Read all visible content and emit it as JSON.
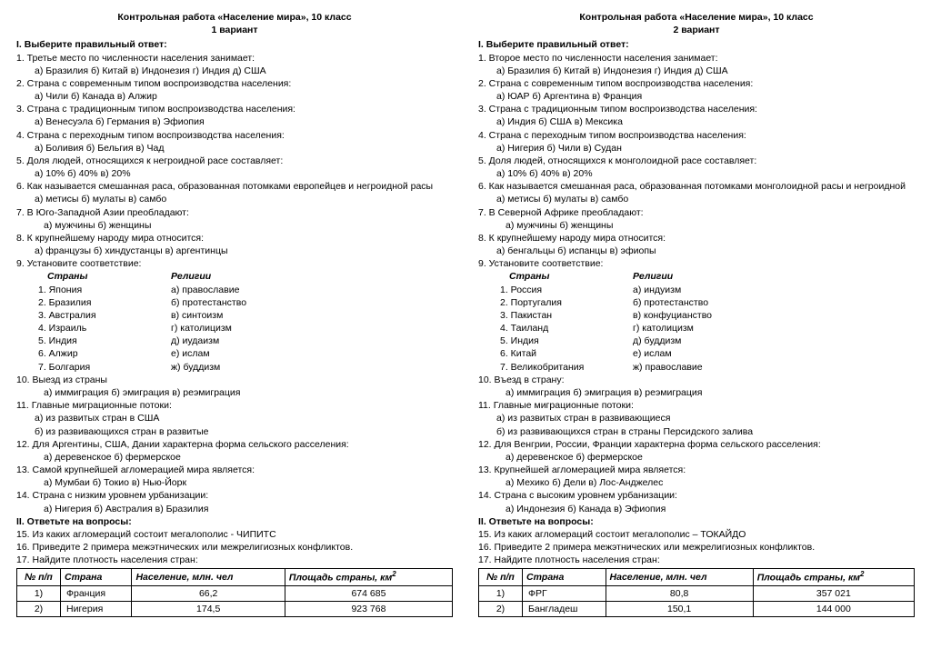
{
  "variants": [
    {
      "title": "Контрольная работа «Население мира», 10 класс",
      "subtitle": "1 вариант",
      "section1": "I. Выберите правильный ответ:",
      "q1": "1. Третье место по численности населения занимает:",
      "q1o": "а) Бразилия    б) Китай   в)   Индонезия   г) Индия    д) США",
      "q2": "2. Страна с современным типом воспроизводства населения:",
      "q2o": "а) Чили         б) Канада        в) Алжир",
      "q3": "3. Страна с традиционным типом воспроизводства населения:",
      "q3o": "а) Венесуэла     б) Германия    в) Эфиопия",
      "q4": "4. Страна с переходным типом воспроизводства населения:",
      "q4o": "а) Боливия    б) Бельгия    в) Чад",
      "q5": "5. Доля людей, относящихся к негроидной расе составляет:",
      "q5o": "а) 10%          б) 40%         в) 20%",
      "q6": "6. Как называется смешанная раса, образованная потомками европейцев и негроидной расы",
      "q6o": "а) метисы        б) мулаты         в) самбо",
      "q7": "7. В Юго-Западной Азии преобладают:",
      "q7o": "а) мужчины         б) женщины",
      "q8": "8. К крупнейшему народу мира относится:",
      "q8o": "а) французы       б) хиндустанцы       в) аргентинцы",
      "q9": "9. Установите соответствие:",
      "match_h1": "Страны",
      "match_h2": "Религии",
      "match": [
        [
          "1. Япония",
          "а) православие"
        ],
        [
          "2. Бразилия",
          "б) протестанство"
        ],
        [
          "3. Австралия",
          "в) синтоизм"
        ],
        [
          "4. Израиль",
          "г) католицизм"
        ],
        [
          "5. Индия",
          "д) иудаизм"
        ],
        [
          "6. Алжир",
          "е) ислам"
        ],
        [
          "7. Болгария",
          "ж) буддизм"
        ]
      ],
      "q10": "10. Выезд из страны",
      "q10o": "а) иммиграция        б) эмиграция         в) реэмиграция",
      "q11": "11. Главные миграционные потоки:",
      "q11a": "а) из развитых стран в США",
      "q11b": "б) из развивающихся стран в развитые",
      "q12": "12. Для Аргентины, США, Дании характерна форма сельского расселения:",
      "q12o": "а) деревенское           б) фермерское",
      "q13": "13. Самой крупнейшей агломерацией мира является:",
      "q13o": "а) Мумбаи       б) Токио      в) Нью-Йорк",
      "q14": "14. Страна с низким уровнем  урбанизации:",
      "q14o": "а) Нигерия       б) Австралия        в) Бразилия",
      "section2": "II. Ответьте на вопросы:",
      "q15": "15.  Из каких агломераций состоит мегалополис - ЧИПИТС",
      "q16": "16.  Приведите 2 примера межэтнических или межрелигиозных конфликтов.",
      "q17": "17. Найдите плотность населения стран:",
      "table": {
        "headers": [
          "№ п/п",
          "Страна",
          "Население, млн. чел",
          "Площадь страны, км"
        ],
        "rows": [
          [
            "1)",
            "Франция",
            "66,2",
            "674 685"
          ],
          [
            "2)",
            "Нигерия",
            "174,5",
            "923 768"
          ]
        ]
      }
    },
    {
      "title": "Контрольная работа «Население мира», 10 класс",
      "subtitle": "2 вариант",
      "section1": "I. Выберите правильный ответ:",
      "q1": "1. Второе место по численности населения занимает:",
      "q1o": "а) Бразилия    б) Китай   в)   Индонезия   г) Индия    д) США",
      "q2": "2. Страна с современным типом воспроизводства населения:",
      "q2o": "а) ЮАР     б) Аргентина     в) Франция",
      "q3": "3. Страна с традиционным типом воспроизводства населения:",
      "q3o": "а) Индия    б) США    в) Мексика",
      "q4": "4. Страна с переходным типом воспроизводства населения:",
      "q4o": "а) Нигерия    б) Чили    в) Судан",
      "q5": "5. Доля людей, относящихся к монголоидной расе составляет:",
      "q5o": "а) 10%          б) 40%         в) 20%",
      "q6": "6. Как называется смешанная раса, образованная потомками монголоидной расы и  негроидной",
      "q6o": "а) метисы          б) мулаты           в) самбо",
      "q7": "7. В Северной Африке преобладают:",
      "q7o": "а) мужчины               б) женщины",
      "q8": "8. К крупнейшему народу мира относится:",
      "q8o": "а) бенгальцы        б) испанцы        в) эфиопы",
      "q9": "9. Установите соответствие:",
      "match_h1": "Страны",
      "match_h2": "Религии",
      "match": [
        [
          "1. Россия",
          "а) индуизм"
        ],
        [
          "2. Португалия",
          "б) протестанство"
        ],
        [
          "3. Пакистан",
          "в) конфуцианство"
        ],
        [
          "4. Таиланд",
          "г) католицизм"
        ],
        [
          "5. Индия",
          "д) буддизм"
        ],
        [
          "6. Китай",
          "е) ислам"
        ],
        [
          "7. Великобритания",
          "ж) православие"
        ]
      ],
      "q10": "10. Въезд в страну:",
      "q10o": "а) иммиграция        б) эмиграция         в) реэмиграция",
      "q11": "11. Главные миграционные потоки:",
      "q11a": "а) из развитых стран в развивающиеся",
      "q11b": "б) из развивающихся стран в страны Персидского залива",
      "q12": "12. Для Венгрии, России, Франции характерна форма сельского расселения:",
      "q12o": "а) деревенское           б) фермерское",
      "q13": "13. Крупнейшей агломерацией мира является:",
      "q13o": "а) Мехико       б) Дели        в) Лос-Анджелес",
      "q14": "14. Страна с высоким уровнем  урбанизации:",
      "q14o": "а) Индонезия      б) Канада       в) Эфиопия",
      "section2": "II. Ответьте на вопросы:",
      "q15": "15. Из каких агломераций состоит мегалополис – ТОКАЙДО",
      "q16": "16. Приведите 2 примера межэтнических или межрелигиозных конфликтов.",
      "q17": "17. Найдите плотность населения стран:",
      "table": {
        "headers": [
          "№ п/п",
          "Страна",
          "Население, млн. чел",
          "Площадь страны, км"
        ],
        "rows": [
          [
            "1)",
            "ФРГ",
            "80,8",
            "357 021"
          ],
          [
            "2)",
            "Бангладеш",
            "150,1",
            "144 000"
          ]
        ]
      }
    }
  ]
}
